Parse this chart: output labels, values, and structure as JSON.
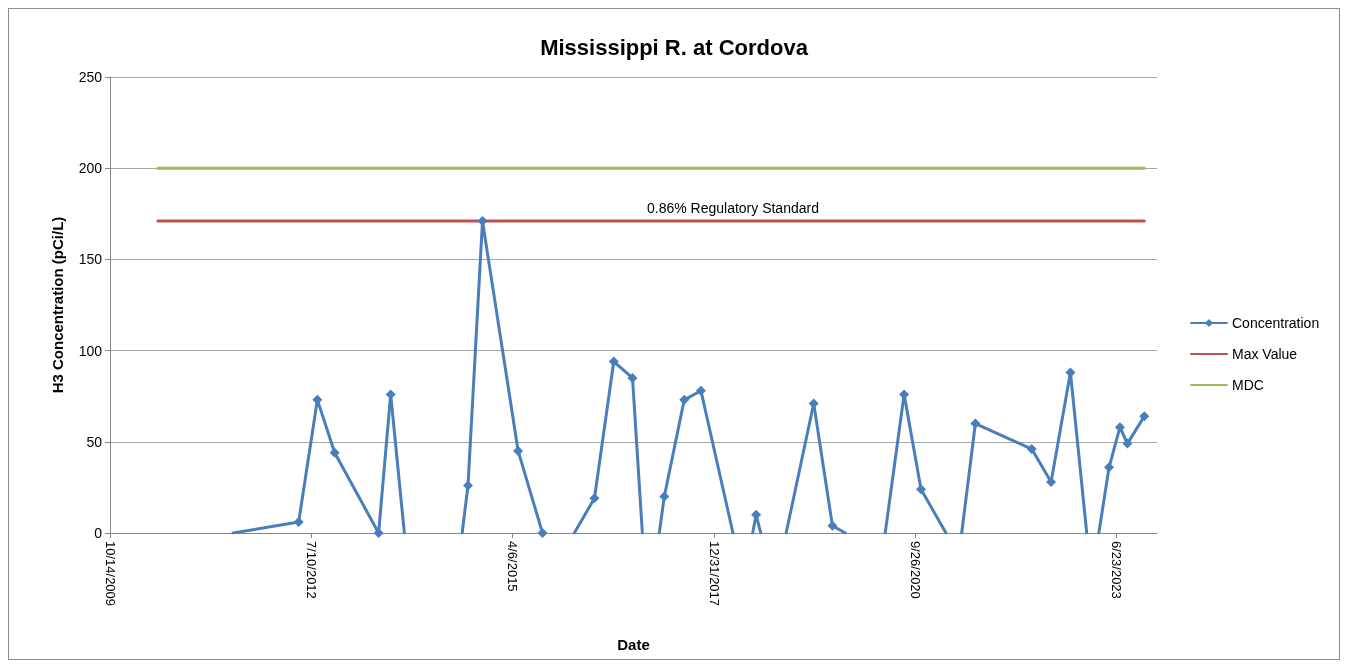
{
  "chart_data": {
    "type": "line",
    "title": "Mississippi R. at Cordova",
    "xlabel": "Date",
    "ylabel": "H3 Concentration (pCi/L)",
    "xlim": [
      "2009-10-14",
      "2024-01-09"
    ],
    "xticks": [
      {
        "value": "2009-10-14",
        "label": "10/14/2009"
      },
      {
        "value": "2012-07-10",
        "label": "7/10/2012"
      },
      {
        "value": "2015-04-06",
        "label": "4/6/2015"
      },
      {
        "value": "2017-12-31",
        "label": "12/31/2017"
      },
      {
        "value": "2020-09-26",
        "label": "9/26/2020"
      },
      {
        "value": "2023-06-23",
        "label": "6/23/2023"
      }
    ],
    "ylim": [
      0,
      250
    ],
    "yticks": [
      0,
      50,
      100,
      150,
      200,
      250
    ],
    "grid": "y",
    "legend": "right",
    "annotations": [
      {
        "text": "0.86% Regulatory Standard",
        "x": "2018-04-04",
        "y": 171
      }
    ],
    "series": [
      {
        "name": "Concentration",
        "color": "#4a7ebb",
        "marker": "diamond",
        "x": [
          "2012-05-08",
          "2012-08-09",
          "2012-11-03",
          "2013-06-09",
          "2013-08-08",
          "2014-03-07",
          "2014-08-27",
          "2014-11-07",
          "2015-05-03",
          "2015-09-01",
          "2015-11-19",
          "2016-05-16",
          "2016-08-20",
          "2016-11-21",
          "2017-02-20",
          "2017-04-28",
          "2017-08-05",
          "2017-10-27",
          "2018-05-23",
          "2018-07-28",
          "2018-10-22",
          "2019-05-10",
          "2019-08-11",
          "2020-01-21",
          "2020-08-01",
          "2020-10-24",
          "2021-04-05",
          "2021-07-21",
          "2022-04-27",
          "2022-08-01",
          "2022-11-05",
          "2023-02-24",
          "2023-05-16",
          "2023-07-09",
          "2023-08-15",
          "2023-11-07"
        ],
        "values": [
          6,
          73,
          44,
          0,
          76,
          null,
          26,
          171,
          45,
          0,
          null,
          19,
          94,
          85,
          null,
          20,
          73,
          78,
          null,
          10,
          null,
          71,
          4,
          null,
          76,
          24,
          null,
          60,
          46,
          28,
          88,
          null,
          36,
          58,
          49,
          64
        ]
      },
      {
        "color": "#4a7ebb",
        "marker": "none",
        "x": [
          "2011-06-17",
          "2012-05-08",
          "2012-12-01",
          "2013-08-08",
          "2013-10-15",
          "2014-03-07",
          "2014-07-29",
          "2014-08-27",
          "2015-06-01",
          "2016-02-06",
          "2016-05-16",
          "2016-08-01",
          "2016-11-21",
          "2017-01-09",
          "2017-02-20",
          "2017-04-03",
          "2017-04-28",
          "2017-08-01",
          "2017-10-27",
          "2018-04-04",
          "2018-05-23",
          "2018-07-11",
          "2018-07-28",
          "2018-08-20",
          "2018-10-22",
          "2018-12-24",
          "2019-05-10",
          "2019-07-01",
          "2019-08-11",
          "2019-10-14",
          "2020-01-21",
          "2020-04-29",
          "2020-08-01",
          "2020-09-15",
          "2020-10-24",
          "2021-02-25",
          "2021-04-05",
          "2021-05-14",
          "2021-07-21",
          "2022-01-01",
          "2022-11-05",
          "2023-01-25",
          "2023-02-24",
          "2023-03-26",
          "2023-05-16"
        ],
        "values": [
          0,
          6,
          null,
          76,
          0,
          null,
          0,
          26,
          null,
          0,
          19,
          null,
          85,
          0,
          null,
          0,
          20,
          null,
          78,
          0,
          null,
          0,
          10,
          0,
          null,
          0,
          71,
          null,
          4,
          0,
          null,
          0,
          76,
          null,
          24,
          0,
          null,
          0,
          60,
          null,
          88,
          0,
          null,
          0,
          36
        ]
      },
      {
        "name": "Max Value",
        "color": "#c0504d",
        "marker": "none",
        "x": [
          "2010-06-09",
          "2023-11-07"
        ],
        "values": [
          171,
          171
        ]
      },
      {
        "name": "MDC",
        "color": "#9bbb59",
        "marker": "none",
        "x": [
          "2010-06-09",
          "2023-11-07"
        ],
        "values": [
          200,
          200
        ]
      }
    ]
  }
}
